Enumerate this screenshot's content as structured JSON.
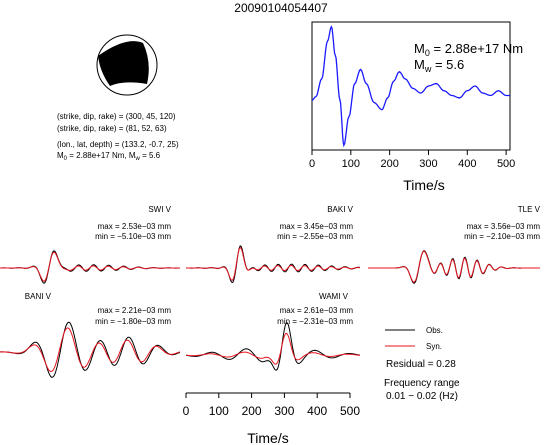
{
  "event_id": "20090104054407",
  "focal_info": {
    "line1": "(strike, dip, rake) = (300, 45, 120)",
    "line2": "(strike, dip, rake) = (81, 52, 63)",
    "line3": "(lon., lat, depth) = (133.2, -0.7, 25)",
    "line4_m0": "M",
    "line4_rest": "= 2.88e+17 Nm, M",
    "line4_tail": "= 5.6"
  },
  "stf": {
    "m0_label": "M",
    "m0_sub": "0",
    "m0_value": "= 2.88e+17 Nm",
    "mw_label": "M",
    "mw_sub": "w",
    "mw_value": "= 5.6",
    "xlabel": "Time/s",
    "x_ticks": [
      "0",
      "100",
      "200",
      "300",
      "400",
      "500"
    ]
  },
  "stations": [
    {
      "name": "SWI V",
      "max": "max = 2.53e−03 mm",
      "min": "min = −5.10e−03 mm"
    },
    {
      "name": "BAKI V",
      "max": "max = 3.45e−03 mm",
      "min": "min = −2.55e−03 mm"
    },
    {
      "name": "TLE V",
      "max": "max = 3.56e−03 mm",
      "min": "min = −2.10e−03 mm"
    },
    {
      "name": "BANI V",
      "max": "max = 2.21e−03 mm",
      "min": "min = −1.80e−03 mm"
    },
    {
      "name": "WAMI V",
      "max": "max = 2.61e−03 mm",
      "min": "min = −2.31e−03 mm"
    }
  ],
  "legend": {
    "obs": "Obs.",
    "syn": "Syn.",
    "residual": "Residual = 0.28",
    "freq_title": "Frequency range",
    "freq_value": "0.01 − 0.02 (Hz)"
  },
  "bottom_axis": {
    "xlabel": "Time/s",
    "x_ticks": [
      "0",
      "100",
      "200",
      "300",
      "400",
      "500"
    ]
  },
  "colors": {
    "obs": "#000000",
    "syn": "#e8141e",
    "stf": "#1a1aff"
  },
  "chart_data": [
    {
      "type": "line",
      "x": [
        0,
        10,
        25,
        40,
        50,
        60,
        72,
        82,
        95,
        110,
        125,
        140,
        160,
        180,
        195,
        210,
        225,
        240,
        260,
        280,
        300,
        320,
        340,
        360,
        380,
        400,
        420,
        440,
        460,
        480,
        500,
        510
      ],
      "series": [
        {
          "values": [
            0.3,
            0.45,
            1.2,
            2.8,
            3.4,
            2.2,
            0.3,
            -1.6,
            -0.4,
            1.0,
            1.6,
            1.0,
            0.2,
            -0.1,
            0.4,
            1.1,
            1.5,
            1.2,
            0.8,
            0.6,
            0.9,
            1.0,
            0.7,
            0.5,
            0.4,
            0.7,
            0.9,
            0.6,
            0.5,
            0.7,
            0.5,
            0.5
          ]
        }
      ],
      "xlabel": "Time/s",
      "xlim": [
        0,
        510
      ],
      "ylim": [
        -1.8,
        3.6
      ]
    },
    {
      "type": "line",
      "x_ticks": [
        0,
        100,
        200,
        300,
        400,
        500
      ],
      "xlabel": "Time/s",
      "xlim": [
        0,
        510
      ],
      "series": [
        {
          "name": "Obs."
        },
        {
          "name": "Syn."
        }
      ]
    }
  ]
}
